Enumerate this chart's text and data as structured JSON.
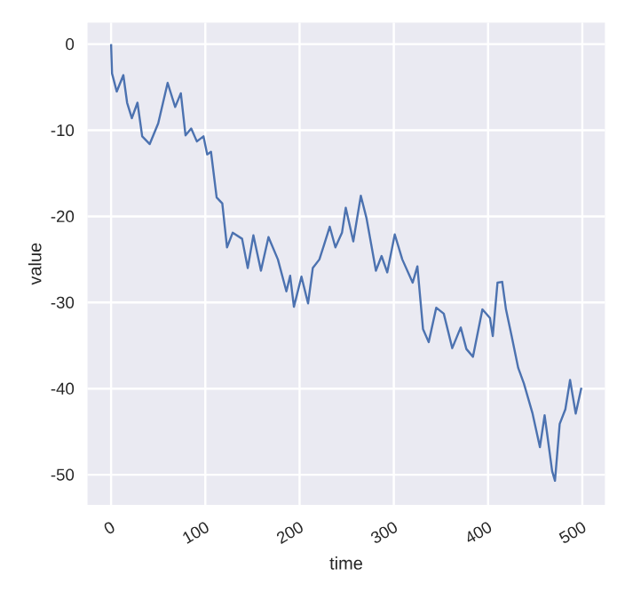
{
  "chart_data": {
    "type": "line",
    "xlabel": "time",
    "ylabel": "value",
    "color": "#4c72b0",
    "x": [
      0,
      1,
      6,
      13,
      17,
      22,
      28,
      33,
      41,
      50,
      60,
      68,
      74,
      79,
      85,
      91,
      98,
      102,
      106,
      112,
      118,
      123,
      129,
      139,
      145,
      151,
      159,
      167,
      177,
      186,
      190,
      194,
      202,
      209,
      214,
      221,
      226,
      232,
      238,
      245,
      249,
      257,
      265,
      271,
      281,
      287,
      293,
      301,
      309,
      320,
      325,
      331,
      337,
      345,
      353,
      362,
      371,
      377,
      384,
      394,
      402,
      405,
      410,
      415,
      419,
      425,
      432,
      438,
      447,
      455,
      460,
      463,
      468,
      471,
      476,
      482,
      487,
      493,
      499
    ],
    "values": [
      0,
      -3.4,
      -5.5,
      -3.6,
      -6.8,
      -8.6,
      -6.8,
      -10.7,
      -11.6,
      -9.2,
      -4.5,
      -7.3,
      -5.7,
      -10.6,
      -9.8,
      -11.3,
      -10.7,
      -12.8,
      -12.5,
      -17.8,
      -18.5,
      -23.6,
      -21.9,
      -22.6,
      -26.0,
      -22.2,
      -26.3,
      -22.4,
      -25.0,
      -28.7,
      -26.9,
      -30.5,
      -27.0,
      -30.1,
      -26.0,
      -25.0,
      -23.3,
      -21.2,
      -23.6,
      -21.9,
      -19.0,
      -22.9,
      -17.6,
      -20.2,
      -26.3,
      -24.6,
      -26.5,
      -22.1,
      -25.0,
      -27.7,
      -25.8,
      -33.1,
      -34.6,
      -30.6,
      -31.3,
      -35.3,
      -32.9,
      -35.4,
      -36.3,
      -30.8,
      -31.8,
      -33.9,
      -27.7,
      -27.6,
      -30.8,
      -33.9,
      -37.6,
      -39.4,
      -42.8,
      -46.8,
      -43.1,
      -45.5,
      -49.6,
      -50.7,
      -44.1,
      -42.4,
      -39.0,
      -42.9,
      -39.9
    ],
    "xlim": [
      -25,
      524
    ],
    "ylim": [
      -53.5,
      2.5
    ],
    "xticks": [
      0,
      100,
      200,
      300,
      400,
      500
    ],
    "yticks": [
      -50,
      -40,
      -30,
      -20,
      -10,
      0
    ],
    "grid": true
  }
}
